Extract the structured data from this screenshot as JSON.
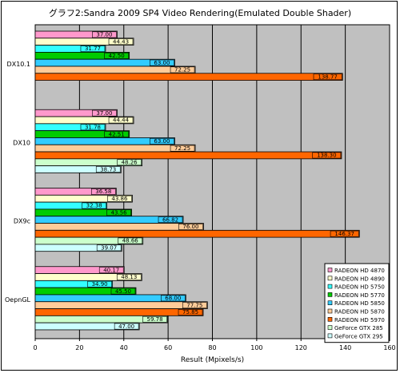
{
  "chart_data": {
    "type": "bar",
    "orientation": "horizontal",
    "title": "グラフ2:Sandra 2009 SP4 Video Rendering(Emulated Double Shader)",
    "xlabel": "Result (Mpixels/s)",
    "ylabel": "",
    "xlim": [
      0,
      160
    ],
    "xticks": [
      0,
      20,
      40,
      60,
      80,
      100,
      120,
      140,
      160
    ],
    "grid": true,
    "legend_position": "bottom-right",
    "categories": [
      "DX10.1",
      "DX10",
      "DX9c",
      "OepnGL"
    ],
    "series": [
      {
        "name": "RADEON HD 4870",
        "color": "#ff99cc",
        "values": [
          37.0,
          37.0,
          36.58,
          40.17
        ]
      },
      {
        "name": "RADEON HD 4890",
        "color": "#ffffcc",
        "values": [
          44.43,
          44.44,
          43.86,
          48.13
        ]
      },
      {
        "name": "RADEON HD 5750",
        "color": "#33ffff",
        "values": [
          31.77,
          31.78,
          32.38,
          34.9
        ]
      },
      {
        "name": "RADEON HD 5770",
        "color": "#00cc00",
        "values": [
          42.5,
          42.51,
          43.56,
          45.5
        ]
      },
      {
        "name": "RADEON HD 5850",
        "color": "#33ccff",
        "values": [
          63.0,
          63.0,
          66.82,
          68.0
        ]
      },
      {
        "name": "RADEON HD 5870",
        "color": "#ffcc99",
        "values": [
          72.25,
          72.25,
          76.0,
          77.75
        ]
      },
      {
        "name": "RADEON HD 5970",
        "color": "#ff6600",
        "values": [
          138.77,
          138.3,
          146.37,
          75.85
        ]
      },
      {
        "name": "GeForce GTX 285",
        "color": "#ccffcc",
        "values": [
          null,
          48.26,
          48.66,
          59.78
        ]
      },
      {
        "name": "GeForce GTX 295",
        "color": "#ccffff",
        "values": [
          null,
          38.73,
          39.07,
          47.0
        ]
      }
    ],
    "value_labels": [
      [
        "37.00",
        "44.43",
        "31.77",
        "42.50",
        "63.00",
        "72.25",
        "138.77",
        "",
        ""
      ],
      [
        "37.00",
        "44.44",
        "31.78",
        "42.51",
        "63.00",
        "72.25",
        "138.30",
        "48.26",
        "38.73"
      ],
      [
        "36.58",
        "43.86",
        "32.38",
        "43.56",
        "66.82",
        "76.00",
        "146.37",
        "48.66",
        "39.07"
      ],
      [
        "40.17",
        "48.13",
        "34.90",
        "45.50",
        "68.00",
        "77.75",
        "75.85",
        "59.78",
        "47.00"
      ]
    ]
  }
}
